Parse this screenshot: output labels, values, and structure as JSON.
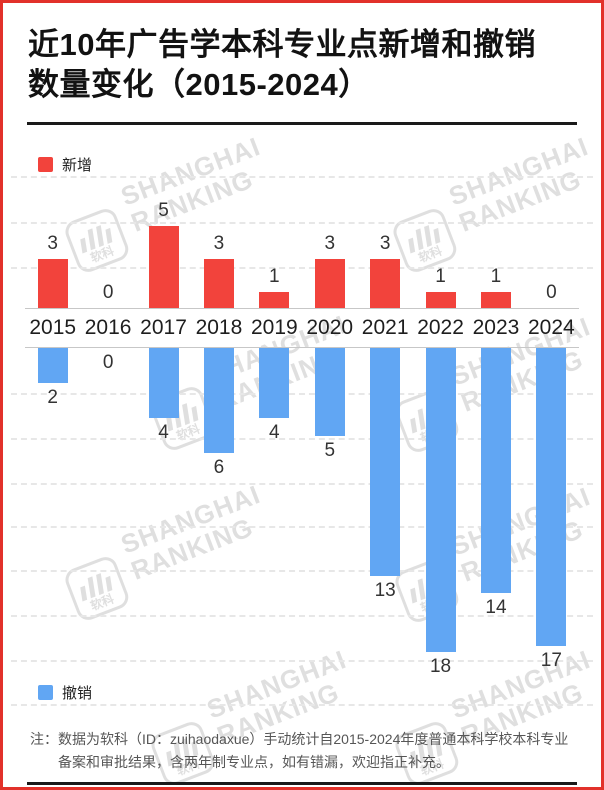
{
  "title": {
    "line1": "近10年广告学本科专业点新增和撤销",
    "line2": "数量变化（2015-2024）"
  },
  "legend_top": {
    "label": "新增"
  },
  "legend_bottom": {
    "label": "撤销"
  },
  "watermark": {
    "brand_line1": "SHANGHAI",
    "brand_line2": "RANKING",
    "logo_label": "软科"
  },
  "footnote": {
    "prefix": "注：",
    "text": "数据为软科（ID：zuihaodaxue）手动统计自2015-2024年度普通本科学校本科专业备案和审批结果，含两年制专业点，如有错漏，欢迎指正补充。"
  },
  "colors": {
    "added": "#f2433c",
    "removed": "#61a6f3",
    "frame": "#e2312a",
    "axis_line": "#c7c7c7",
    "gridline": "#e7e7e7"
  },
  "chart_data": {
    "type": "bar",
    "orientation": "diverging-vertical",
    "title": "近10年广告学本科专业点新增和撤销数量变化（2015-2024）",
    "categories": [
      "2015",
      "2016",
      "2017",
      "2018",
      "2019",
      "2020",
      "2021",
      "2022",
      "2023",
      "2024"
    ],
    "series": [
      {
        "name": "新增",
        "color": "#f2433c",
        "direction": "up",
        "values": [
          3,
          0,
          5,
          3,
          1,
          3,
          3,
          1,
          1,
          0
        ]
      },
      {
        "name": "撤销",
        "color": "#61a6f3",
        "direction": "down",
        "values": [
          2,
          0,
          4,
          6,
          4,
          5,
          13,
          18,
          14,
          17
        ]
      }
    ],
    "value_labels": true,
    "up_axis_max": 5,
    "down_axis_max": 18,
    "grid": "dashed-horizontal",
    "legend_position": "top-left-and-bottom-left"
  }
}
